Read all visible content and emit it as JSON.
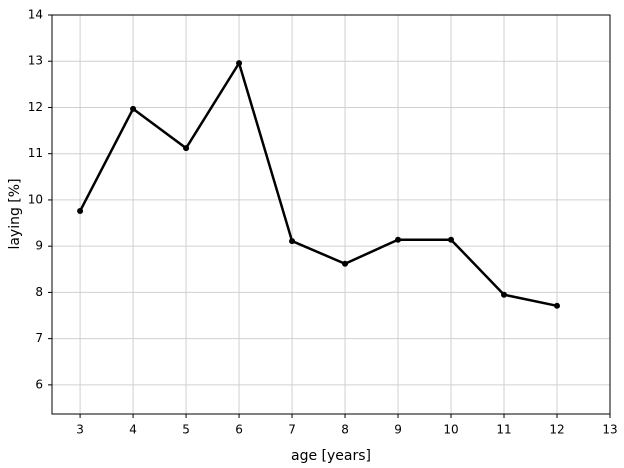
{
  "chart_data": {
    "type": "line",
    "x": [
      3,
      4,
      5,
      6,
      7,
      8,
      9,
      10,
      11,
      12
    ],
    "values": [
      9.76,
      11.97,
      11.12,
      12.96,
      9.11,
      8.62,
      9.14,
      9.14,
      7.95,
      7.71
    ],
    "color": "#000000",
    "xlabel": "age [years]",
    "ylabel": "laying [%]",
    "xlim": [
      2.47,
      13
    ],
    "ylim": [
      5.37,
      14
    ],
    "xticks": [
      3,
      4,
      5,
      6,
      7,
      8,
      9,
      10,
      11,
      12,
      13
    ],
    "yticks": [
      6,
      7,
      8,
      9,
      10,
      11,
      12,
      13,
      14
    ],
    "grid": true
  }
}
